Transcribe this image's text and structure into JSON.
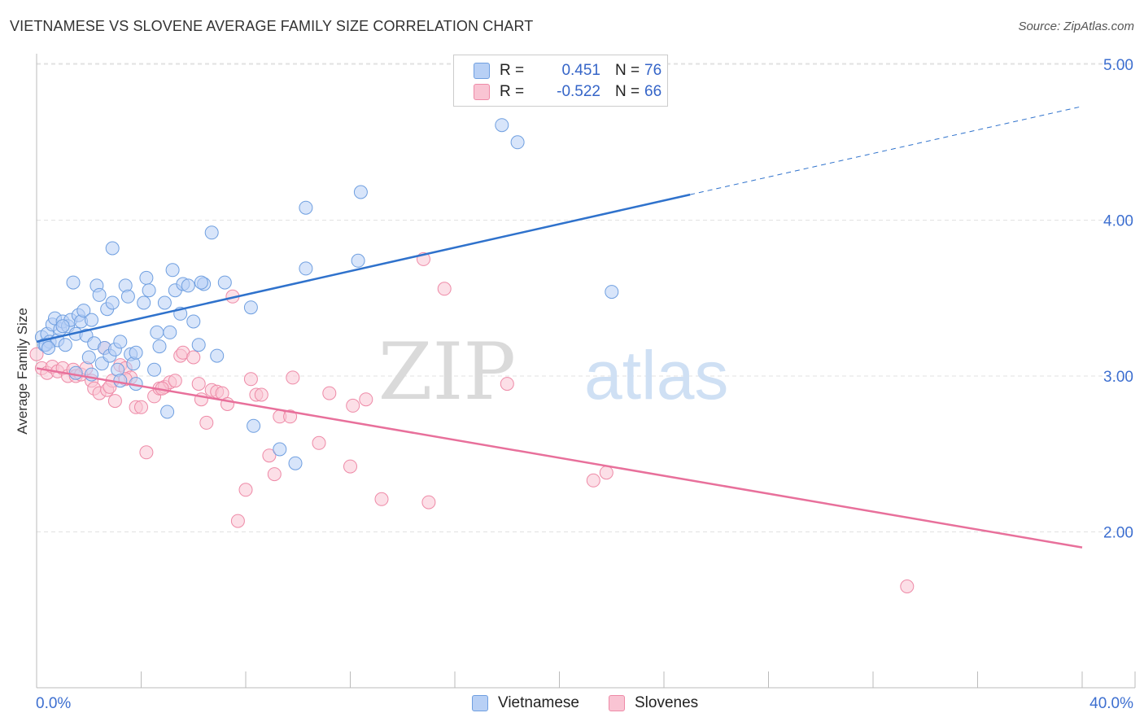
{
  "title": "VIETNAMESE VS SLOVENE AVERAGE FAMILY SIZE CORRELATION CHART",
  "source": "Source: ZipAtlas.com",
  "watermark": {
    "bold": "ZIP",
    "light": "atlas"
  },
  "legend": {
    "r_label": "R =",
    "n_label": "N =",
    "rows": [
      {
        "r": "0.451",
        "n": "76",
        "color": "#6f9fe0"
      },
      {
        "r": "-0.522",
        "n": "66",
        "color": "#ee8aa7"
      }
    ]
  },
  "colors": {
    "blue_fill": "#b8d0f5",
    "blue_stroke": "#6f9fe0",
    "blue_line": "#2f72cc",
    "pink_fill": "#f9c4d3",
    "pink_stroke": "#ee8aa7",
    "pink_line": "#e8709b",
    "tick_label": "#3d6fd0",
    "grid": "#e2e2e2"
  },
  "chart_data": {
    "type": "scatter",
    "title": "VIETNAMESE VS SLOVENE AVERAGE FAMILY SIZE CORRELATION CHART",
    "xlabel": "",
    "ylabel": "Average Family Size",
    "xlim": [
      0,
      40
    ],
    "ylim": [
      1.45,
      5.1
    ],
    "x_tick_labels": [
      "0.0%",
      "40.0%"
    ],
    "y_ticks": [
      2.0,
      3.0,
      4.0,
      5.0
    ],
    "y_tick_labels": [
      "2.00",
      "3.00",
      "4.00",
      "5.00"
    ],
    "grid": true,
    "legend_position": "bottom",
    "series": [
      {
        "name": "Vietnamese",
        "color": "#6f9fe0",
        "trend": {
          "x0": 0,
          "y0": 3.22,
          "x1": 40,
          "y1": 4.73,
          "solid_until_x": 25
        },
        "points": [
          [
            0.2,
            3.25
          ],
          [
            0.3,
            3.2
          ],
          [
            0.4,
            3.27
          ],
          [
            0.5,
            3.22
          ],
          [
            0.6,
            3.33
          ],
          [
            0.7,
            3.37
          ],
          [
            0.8,
            3.23
          ],
          [
            0.9,
            3.3
          ],
          [
            1.0,
            3.35
          ],
          [
            1.1,
            3.2
          ],
          [
            1.2,
            3.32
          ],
          [
            1.3,
            3.36
          ],
          [
            1.4,
            3.6
          ],
          [
            1.5,
            3.27
          ],
          [
            1.6,
            3.39
          ],
          [
            1.7,
            3.35
          ],
          [
            1.8,
            3.42
          ],
          [
            1.9,
            3.26
          ],
          [
            2.0,
            3.12
          ],
          [
            2.1,
            3.36
          ],
          [
            2.2,
            3.21
          ],
          [
            2.3,
            3.58
          ],
          [
            2.4,
            3.52
          ],
          [
            2.5,
            3.08
          ],
          [
            2.6,
            3.18
          ],
          [
            2.7,
            3.43
          ],
          [
            2.8,
            3.13
          ],
          [
            2.9,
            3.47
          ],
          [
            3.0,
            3.17
          ],
          [
            3.1,
            3.04
          ],
          [
            3.2,
            3.22
          ],
          [
            3.4,
            3.58
          ],
          [
            3.5,
            3.51
          ],
          [
            3.6,
            3.14
          ],
          [
            3.7,
            3.08
          ],
          [
            3.8,
            3.15
          ],
          [
            4.1,
            3.47
          ],
          [
            4.2,
            3.63
          ],
          [
            4.3,
            3.55
          ],
          [
            4.6,
            3.28
          ],
          [
            4.7,
            3.19
          ],
          [
            4.9,
            3.47
          ],
          [
            5.1,
            3.28
          ],
          [
            5.2,
            3.68
          ],
          [
            5.3,
            3.55
          ],
          [
            5.5,
            3.4
          ],
          [
            5.6,
            3.59
          ],
          [
            5.8,
            3.58
          ],
          [
            6.0,
            3.35
          ],
          [
            6.2,
            3.2
          ],
          [
            6.4,
            3.59
          ],
          [
            6.7,
            3.92
          ],
          [
            6.9,
            3.13
          ],
          [
            7.2,
            3.6
          ],
          [
            8.2,
            3.44
          ],
          [
            8.3,
            2.68
          ],
          [
            9.3,
            2.53
          ],
          [
            9.9,
            2.44
          ],
          [
            10.3,
            4.08
          ],
          [
            10.3,
            3.69
          ],
          [
            12.3,
            3.74
          ],
          [
            12.4,
            4.18
          ],
          [
            17.8,
            4.61
          ],
          [
            18.4,
            4.5
          ],
          [
            22.0,
            3.54
          ],
          [
            2.9,
            3.82
          ],
          [
            1.5,
            3.02
          ],
          [
            3.2,
            2.97
          ],
          [
            5.0,
            2.77
          ],
          [
            2.1,
            3.01
          ],
          [
            4.5,
            3.04
          ],
          [
            0.35,
            3.2
          ],
          [
            0.45,
            3.18
          ],
          [
            3.8,
            2.95
          ],
          [
            6.3,
            3.6
          ],
          [
            1.0,
            3.32
          ]
        ]
      },
      {
        "name": "Slovenes",
        "color": "#ee8aa7",
        "trend": {
          "x0": 0,
          "y0": 3.05,
          "x1": 40,
          "y1": 1.9
        },
        "points": [
          [
            0.0,
            3.14
          ],
          [
            0.2,
            3.05
          ],
          [
            0.4,
            3.02
          ],
          [
            0.6,
            3.06
          ],
          [
            0.8,
            3.03
          ],
          [
            1.0,
            3.05
          ],
          [
            1.2,
            3.0
          ],
          [
            1.4,
            3.04
          ],
          [
            1.5,
            3.0
          ],
          [
            1.7,
            3.01
          ],
          [
            1.9,
            3.05
          ],
          [
            2.1,
            2.97
          ],
          [
            2.2,
            2.92
          ],
          [
            2.4,
            2.89
          ],
          [
            2.6,
            3.18
          ],
          [
            2.7,
            2.91
          ],
          [
            2.9,
            2.97
          ],
          [
            3.0,
            2.84
          ],
          [
            3.2,
            3.07
          ],
          [
            3.4,
            3.05
          ],
          [
            3.6,
            2.99
          ],
          [
            3.8,
            2.8
          ],
          [
            4.0,
            2.8
          ],
          [
            4.2,
            2.51
          ],
          [
            4.5,
            2.87
          ],
          [
            4.7,
            2.92
          ],
          [
            4.9,
            2.93
          ],
          [
            5.1,
            2.96
          ],
          [
            5.3,
            2.97
          ],
          [
            5.5,
            3.13
          ],
          [
            5.6,
            3.15
          ],
          [
            6.0,
            3.12
          ],
          [
            6.2,
            2.95
          ],
          [
            6.3,
            2.85
          ],
          [
            6.5,
            2.7
          ],
          [
            6.7,
            2.91
          ],
          [
            6.9,
            2.9
          ],
          [
            7.1,
            2.89
          ],
          [
            7.3,
            2.82
          ],
          [
            7.5,
            3.51
          ],
          [
            7.7,
            2.07
          ],
          [
            8.0,
            2.27
          ],
          [
            8.2,
            2.98
          ],
          [
            8.4,
            2.88
          ],
          [
            8.6,
            2.88
          ],
          [
            8.9,
            2.49
          ],
          [
            9.1,
            2.37
          ],
          [
            9.3,
            2.74
          ],
          [
            9.7,
            2.74
          ],
          [
            9.8,
            2.99
          ],
          [
            10.8,
            2.57
          ],
          [
            11.2,
            2.89
          ],
          [
            12.0,
            2.42
          ],
          [
            12.1,
            2.81
          ],
          [
            12.6,
            2.85
          ],
          [
            13.2,
            2.21
          ],
          [
            14.8,
            3.75
          ],
          [
            15.0,
            2.19
          ],
          [
            15.6,
            3.56
          ],
          [
            18.0,
            2.95
          ],
          [
            21.3,
            2.33
          ],
          [
            21.8,
            2.38
          ],
          [
            33.3,
            1.65
          ],
          [
            3.4,
            2.98
          ],
          [
            2.8,
            2.93
          ],
          [
            4.8,
            2.92
          ]
        ]
      }
    ]
  }
}
